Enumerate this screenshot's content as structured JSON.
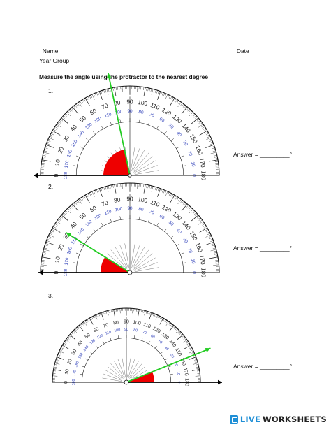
{
  "header": {
    "name_label": "Name",
    "name_blank": "___________________",
    "date_label": "Date",
    "date_blank": "_____________",
    "year_group_label": "Year Group",
    "year_group_blank": "_____________"
  },
  "instruction": "Measure the angle using the protractor to the nearest degree",
  "questions": [
    {
      "number": "1.",
      "answer_label": "Answer =",
      "answer_blank": "_________",
      "degree_symbol": "°",
      "angle_degrees": 78,
      "baseline_direction": "left"
    },
    {
      "number": "2.",
      "answer_label": "Answer =",
      "answer_blank": "_________",
      "degree_symbol": "°",
      "angle_degrees": 32,
      "baseline_direction": "left"
    },
    {
      "number": "3.",
      "answer_label": "Answer =",
      "answer_blank": "_________",
      "degree_symbol": "°",
      "angle_degrees": 22,
      "baseline_direction": "right"
    }
  ],
  "protractor_scale": {
    "outer_labels": [
      "0",
      "10",
      "20",
      "30",
      "40",
      "50",
      "60",
      "70",
      "80",
      "90",
      "100",
      "110",
      "120",
      "130",
      "140",
      "150",
      "160",
      "170",
      "180"
    ],
    "inner_labels": [
      "180",
      "170",
      "160",
      "150",
      "140",
      "130",
      "120",
      "110",
      "100",
      "90",
      "80",
      "70",
      "60",
      "50",
      "40",
      "30",
      "20",
      "10",
      "0"
    ]
  },
  "colors": {
    "arm": "#22cc22",
    "angle_fill": "#ee0000",
    "outer_scale_text": "#222222",
    "inner_scale_text": "#3344bb",
    "logo_blue": "#1f8fd6"
  },
  "footer": {
    "brand_prefix": "LIVE",
    "brand_suffix": "WORKSHEETS",
    "logo_icon": "liveworksheets-logo-icon"
  }
}
